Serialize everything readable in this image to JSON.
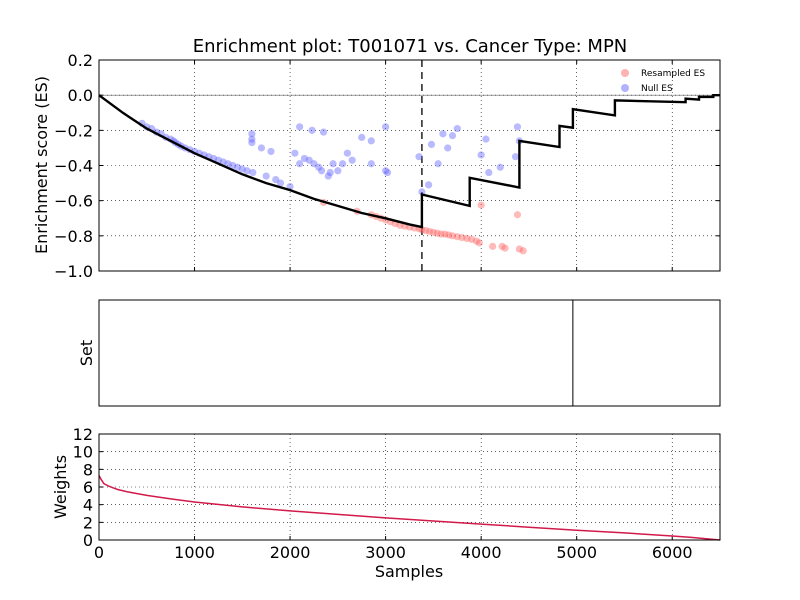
{
  "chart_data": [
    {
      "type": "line",
      "title": "Enrichment plot: T001071 vs. Cancer Type: MPN",
      "ylabel": "Enrichment score (ES)",
      "xlim": [
        0,
        6500
      ],
      "ylim": [
        -1.0,
        0.2
      ],
      "yticks": [
        0.2,
        0.0,
        -0.2,
        -0.4,
        -0.6,
        -0.8,
        -1.0
      ],
      "ytick_labels": [
        "0.2",
        "0.0",
        "−0.2",
        "−0.4",
        "−0.6",
        "−0.8",
        "−1.0"
      ],
      "grid": true,
      "legend": "top-right",
      "zero_line": 0.0,
      "vline_x": 3380,
      "es_curve": {
        "x": [
          0,
          250,
          500,
          750,
          1000,
          1250,
          1500,
          1750,
          2000,
          2250,
          2500,
          2750,
          3000,
          3250,
          3380,
          3380,
          3880,
          3880,
          4400,
          4400,
          4820,
          4820,
          4960,
          4960,
          5400,
          5400,
          6140,
          6140,
          6280,
          6280,
          6430,
          6430,
          6500
        ],
        "y": [
          0.0,
          -0.1,
          -0.19,
          -0.26,
          -0.33,
          -0.39,
          -0.45,
          -0.5,
          -0.54,
          -0.59,
          -0.63,
          -0.67,
          -0.7,
          -0.735,
          -0.75,
          -0.565,
          -0.63,
          -0.47,
          -0.525,
          -0.26,
          -0.295,
          -0.175,
          -0.185,
          -0.08,
          -0.115,
          -0.03,
          -0.04,
          -0.02,
          -0.025,
          -0.01,
          -0.01,
          0.0,
          0.0
        ]
      },
      "series": [
        {
          "name": "Resampled ES",
          "color": "#ff6666",
          "x": [
            2350,
            2700,
            2850,
            2900,
            2950,
            3000,
            3050,
            3100,
            3150,
            3200,
            3250,
            3300,
            3350,
            3380,
            3420,
            3460,
            3500,
            3540,
            3580,
            3620,
            3660,
            3700,
            3750,
            3800,
            3850,
            3900,
            3950,
            3980,
            4000,
            4120,
            4220,
            4250,
            4380,
            4400,
            4440
          ],
          "y": [
            -0.61,
            -0.66,
            -0.68,
            -0.69,
            -0.7,
            -0.71,
            -0.72,
            -0.73,
            -0.74,
            -0.745,
            -0.75,
            -0.755,
            -0.76,
            -0.765,
            -0.77,
            -0.775,
            -0.78,
            -0.785,
            -0.79,
            -0.79,
            -0.795,
            -0.8,
            -0.805,
            -0.81,
            -0.815,
            -0.82,
            -0.83,
            -0.84,
            -0.625,
            -0.86,
            -0.86,
            -0.87,
            -0.68,
            -0.875,
            -0.885
          ]
        },
        {
          "name": "Null ES",
          "color": "#6666ff",
          "x": [
            450,
            500,
            550,
            600,
            650,
            700,
            750,
            780,
            800,
            830,
            860,
            900,
            950,
            1000,
            1050,
            1100,
            1150,
            1200,
            1250,
            1300,
            1350,
            1400,
            1450,
            1500,
            1550,
            1600,
            1600,
            1600,
            1610,
            1700,
            1750,
            1800,
            1850,
            1900,
            2000,
            2050,
            2100,
            2100,
            2150,
            2200,
            2230,
            2250,
            2300,
            2330,
            2350,
            2400,
            2420,
            2450,
            2500,
            2550,
            2600,
            2650,
            2750,
            2850,
            2850,
            3000,
            3000,
            3020,
            3350,
            3380,
            3450,
            3480,
            3550,
            3600,
            3650,
            3700,
            3750,
            4000,
            4050,
            4080,
            4200,
            4360,
            4380,
            4400
          ],
          "y": [
            -0.16,
            -0.18,
            -0.19,
            -0.21,
            -0.22,
            -0.24,
            -0.25,
            -0.26,
            -0.27,
            -0.28,
            -0.29,
            -0.3,
            -0.31,
            -0.32,
            -0.33,
            -0.34,
            -0.35,
            -0.36,
            -0.37,
            -0.38,
            -0.39,
            -0.4,
            -0.41,
            -0.42,
            -0.43,
            -0.22,
            -0.25,
            -0.27,
            -0.44,
            -0.3,
            -0.46,
            -0.32,
            -0.48,
            -0.5,
            -0.52,
            -0.33,
            -0.18,
            -0.39,
            -0.36,
            -0.37,
            -0.2,
            -0.39,
            -0.41,
            -0.43,
            -0.21,
            -0.46,
            -0.44,
            -0.39,
            -0.43,
            -0.39,
            -0.33,
            -0.37,
            -0.24,
            -0.26,
            -0.39,
            -0.43,
            -0.18,
            -0.44,
            -0.35,
            -0.55,
            -0.51,
            -0.28,
            -0.39,
            -0.22,
            -0.3,
            -0.23,
            -0.19,
            -0.34,
            -0.25,
            -0.44,
            -0.41,
            -0.35,
            -0.18,
            -0.26
          ]
        }
      ]
    },
    {
      "type": "line",
      "ylabel": "Set",
      "xlim": [
        0,
        6500
      ],
      "set_positions": [
        4960
      ]
    },
    {
      "type": "line",
      "xlabel": "Samples",
      "ylabel": "Weights",
      "xlim": [
        0,
        6500
      ],
      "ylim": [
        0,
        12
      ],
      "xticks": [
        0,
        1000,
        2000,
        3000,
        4000,
        5000,
        6000
      ],
      "xtick_labels": [
        "0",
        "1000",
        "2000",
        "3000",
        "4000",
        "5000",
        "6000"
      ],
      "yticks": [
        0,
        2,
        4,
        6,
        8,
        10,
        12
      ],
      "ytick_labels": [
        "0",
        "2",
        "4",
        "6",
        "8",
        "10",
        "12"
      ],
      "grid": true,
      "line_color": "#d21a4a",
      "x": [
        0,
        20,
        50,
        100,
        150,
        200,
        300,
        400,
        500,
        750,
        1000,
        1500,
        2000,
        2500,
        3000,
        3500,
        4000,
        4500,
        5000,
        5500,
        6000,
        6200,
        6400,
        6500
      ],
      "y": [
        7.3,
        6.9,
        6.4,
        6.1,
        5.9,
        5.7,
        5.45,
        5.25,
        5.05,
        4.65,
        4.3,
        3.75,
        3.3,
        2.9,
        2.5,
        2.15,
        1.8,
        1.45,
        1.1,
        0.8,
        0.45,
        0.3,
        0.1,
        0.0
      ]
    }
  ]
}
